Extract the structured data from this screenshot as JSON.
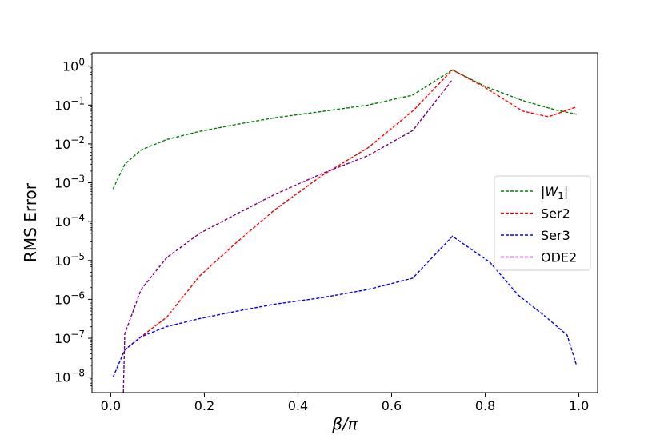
{
  "chart_data": {
    "type": "line",
    "xlabel": "β/π",
    "ylabel": "RMS Error",
    "xlim": [
      -0.04,
      1.04
    ],
    "ylim": [
      4e-09,
      2.2
    ],
    "yscale": "log",
    "xticks": [
      0.0,
      0.2,
      0.4,
      0.6,
      0.8,
      1.0
    ],
    "xtick_labels": [
      "0.0",
      "0.2",
      "0.4",
      "0.6",
      "0.8",
      "1.0"
    ],
    "yticks": [
      1e-08,
      1e-07,
      1e-06,
      1e-05,
      0.0001,
      0.001,
      0.01,
      0.1,
      1
    ],
    "ytick_exponents": [
      "−8",
      "−7",
      "−6",
      "−5",
      "−4",
      "−3",
      "−2",
      "−1",
      "0"
    ],
    "ytick_base": "10",
    "grid": false,
    "legend_position": "center-right",
    "series": [
      {
        "name": "|W1|",
        "legend_main": "|W",
        "legend_sub": "1",
        "legend_end": "|",
        "color": "#008000",
        "x": [
          0.005,
          0.03,
          0.065,
          0.12,
          0.19,
          0.27,
          0.35,
          0.45,
          0.55,
          0.645,
          0.73,
          0.8,
          0.88,
          0.95,
          0.995
        ],
        "y": [
          0.0007,
          0.003,
          0.007,
          0.013,
          0.021,
          0.032,
          0.047,
          0.068,
          0.1,
          0.18,
          0.8,
          0.3,
          0.13,
          0.075,
          0.058
        ]
      },
      {
        "name": "Ser2",
        "color": "#ff0000",
        "x": [
          0.03,
          0.065,
          0.12,
          0.19,
          0.27,
          0.35,
          0.45,
          0.55,
          0.645,
          0.73,
          0.8,
          0.88,
          0.935,
          0.995
        ],
        "y": [
          5e-08,
          1.1e-07,
          3.5e-07,
          4e-06,
          3e-05,
          0.0002,
          0.0015,
          0.008,
          0.07,
          0.8,
          0.28,
          0.07,
          0.05,
          0.09
        ]
      },
      {
        "name": "Ser3",
        "color": "#0000ff",
        "x": [
          0.005,
          0.03,
          0.065,
          0.12,
          0.19,
          0.27,
          0.35,
          0.45,
          0.55,
          0.645,
          0.73,
          0.81,
          0.87,
          0.93,
          0.975,
          0.995
        ],
        "y": [
          1e-08,
          5e-08,
          1.1e-07,
          2e-07,
          3.2e-07,
          5e-07,
          7.5e-07,
          1.1e-06,
          1.8e-06,
          3.5e-06,
          4.2e-05,
          9e-06,
          1.3e-06,
          3.5e-07,
          1.2e-07,
          2e-08
        ]
      },
      {
        "name": "ODE2",
        "color": "#800080",
        "x": [
          0.027,
          0.03,
          0.065,
          0.12,
          0.19,
          0.27,
          0.35,
          0.45,
          0.55,
          0.645,
          0.73
        ],
        "y": [
          4e-09,
          1.3e-07,
          1.8e-06,
          1.2e-05,
          5e-05,
          0.00016,
          0.0005,
          0.0017,
          0.005,
          0.022,
          0.45
        ]
      }
    ]
  }
}
